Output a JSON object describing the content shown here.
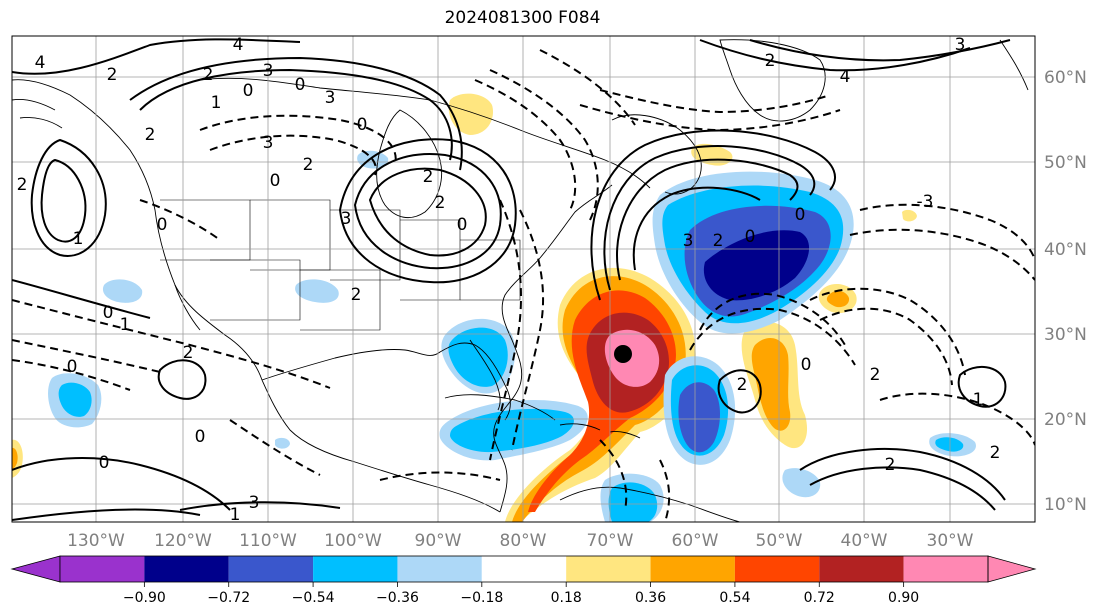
{
  "title": "2024081300 F084",
  "map": {
    "longitude_labels": [
      "130°W",
      "120°W",
      "110°W",
      "100°W",
      "90°W",
      "80°W",
      "70°W",
      "60°W",
      "50°W",
      "40°W",
      "30°W"
    ],
    "latitude_labels": [
      "60°N",
      "50°N",
      "40°N",
      "30°N",
      "20°N",
      "10°N"
    ],
    "contour_labels": [
      "4",
      "2",
      "3",
      "2",
      "0",
      "1",
      "3",
      "2",
      "0",
      "4",
      "3",
      "2",
      "2",
      "1",
      "0",
      "3",
      "2",
      "0",
      "2",
      "0",
      "0",
      "2",
      "0",
      "1",
      "2",
      "0",
      "0",
      "0",
      "3",
      "1",
      "2",
      "-3",
      "4",
      "3",
      "2",
      "0",
      "3",
      "2",
      "0",
      "0",
      "2",
      "1",
      "2",
      "2"
    ],
    "marker": {
      "name": "storm-center",
      "color": "#000000"
    }
  },
  "colorbar": {
    "tick_labels": [
      "−0.90",
      "−0.72",
      "−0.54",
      "−0.36",
      "−0.18",
      "0.18",
      "0.36",
      "0.54",
      "0.72",
      "0.90"
    ],
    "colors": {
      "below": "#9a32cd",
      "neg_090_072": "#00008b",
      "neg_072_054": "#3a57cc",
      "neg_054_036": "#00bfff",
      "neg_036_018": "#add8f7",
      "neutral": "#ffffff",
      "pos_018_036": "#ffe680",
      "pos_036_054": "#ffa500",
      "pos_054_072": "#ff4500",
      "pos_072_090": "#b22222",
      "above": "#ff88b3"
    }
  }
}
